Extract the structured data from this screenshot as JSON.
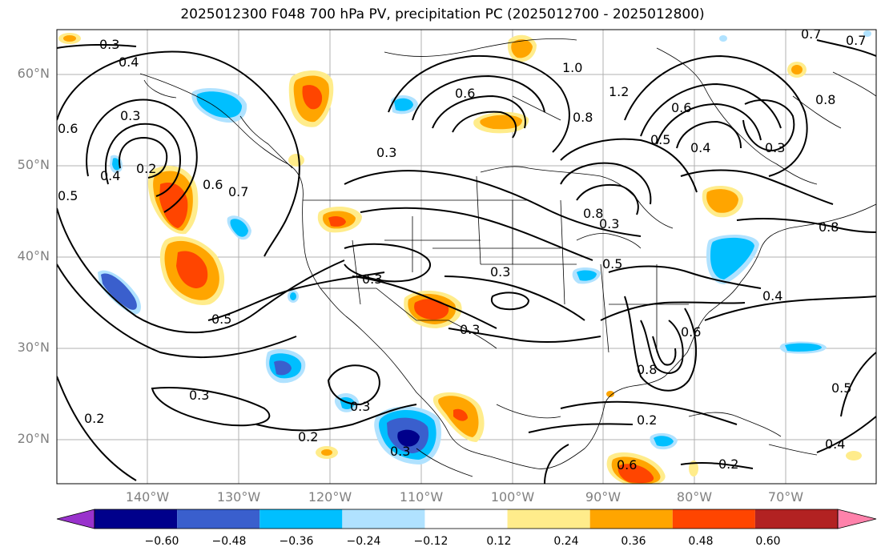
{
  "title": "2025012300 F048 700 hPa PV, precipitation PC (2025012700 - 2025012800)",
  "lat_labels": [
    "60°N",
    "50°N",
    "40°N",
    "30°N",
    "20°N"
  ],
  "lon_labels": [
    "140°W",
    "130°W",
    "120°W",
    "110°W",
    "100°W",
    "90°W",
    "80°W",
    "70°W"
  ],
  "colorbar": {
    "ticks": [
      "−0.60",
      "−0.48",
      "−0.36",
      "−0.24",
      "−0.12",
      "0.12",
      "0.24",
      "0.36",
      "0.48",
      "0.60"
    ],
    "colors": [
      "#9932cc",
      "#00008b",
      "#3a5fcd",
      "#00bfff",
      "#b0e2ff",
      "#ffffff",
      "#ffec8b",
      "#ffa500",
      "#ff4500",
      "#b22222",
      "#ff82ab"
    ]
  },
  "contour_labels": [
    "0.3",
    "0.4",
    "0.6",
    "0.3",
    "0.2",
    "0.5",
    "0.4",
    "0.6",
    "0.7",
    "0.5",
    "0.3",
    "0.6",
    "1.0",
    "1.2",
    "0.8",
    "0.6",
    "0.5",
    "0.4",
    "0.3",
    "0.8",
    "0.7",
    "0.8",
    "0.8",
    "0.6",
    "0.5",
    "0.4",
    "0.3",
    "0.3",
    "0.3",
    "0.5",
    "0.3",
    "0.2",
    "0.3",
    "0.3",
    "0.2",
    "0.8",
    "0.6",
    "0.2",
    "0.2",
    "0.4",
    "0.3",
    "0.7"
  ]
}
